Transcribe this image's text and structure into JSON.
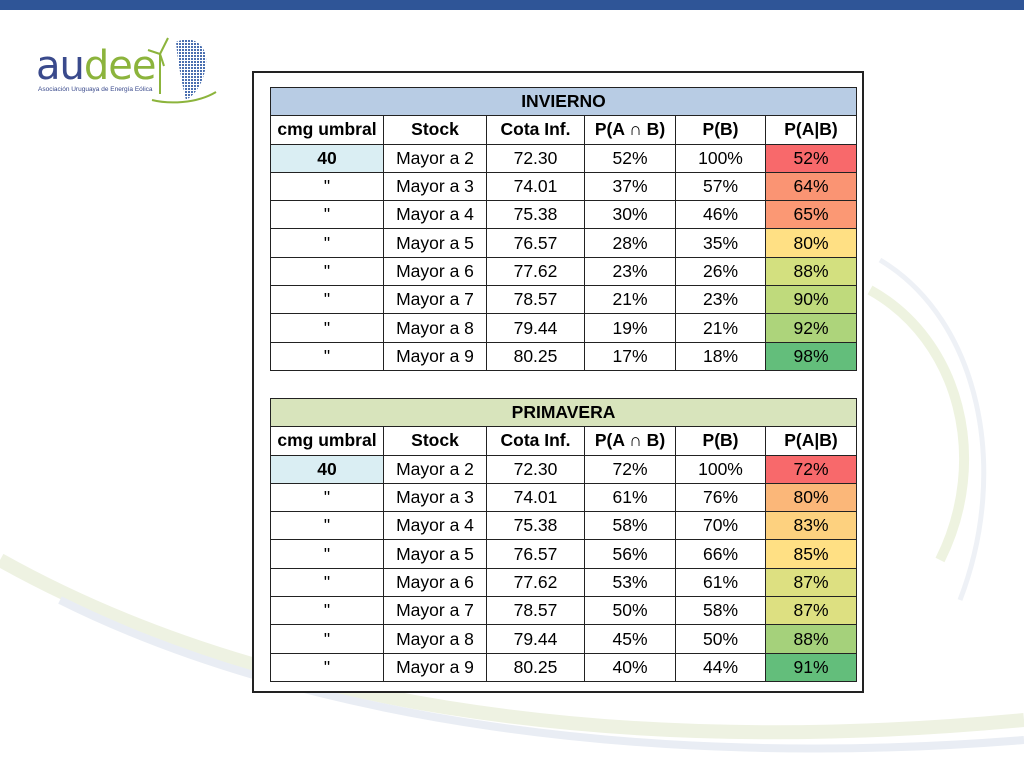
{
  "brand": {
    "name_part1": "au",
    "name_part2": "dee",
    "tagline": "Asociación Uruguaya de Energía Eólica",
    "bar_color": "#2f5597"
  },
  "columns": [
    "cmg umbral",
    "Stock",
    "Cota Inf.",
    "P(A ∩ B)",
    "P(B)",
    "P(A|B)"
  ],
  "tables": [
    {
      "title": "INVIERNO",
      "title_bg": "#b8cce4",
      "rows": [
        {
          "umbral": "40",
          "stock": "Mayor a 2",
          "cota": "72.30",
          "pab": "52%",
          "pb": "100%",
          "pagb": "52%",
          "color": "#f8696b"
        },
        {
          "umbral": "\"",
          "stock": "Mayor a 3",
          "cota": "74.01",
          "pab": "37%",
          "pb": "57%",
          "pagb": "64%",
          "color": "#fa9473"
        },
        {
          "umbral": "\"",
          "stock": "Mayor a 4",
          "cota": "75.38",
          "pab": "30%",
          "pb": "46%",
          "pagb": "65%",
          "color": "#fb9874"
        },
        {
          "umbral": "\"",
          "stock": "Mayor a 5",
          "cota": "76.57",
          "pab": "28%",
          "pb": "35%",
          "pagb": "80%",
          "color": "#ffe084"
        },
        {
          "umbral": "\"",
          "stock": "Mayor a 6",
          "cota": "77.62",
          "pab": "23%",
          "pb": "26%",
          "pagb": "88%",
          "color": "#d3e07f"
        },
        {
          "umbral": "\"",
          "stock": "Mayor a 7",
          "cota": "78.57",
          "pab": "21%",
          "pb": "23%",
          "pagb": "90%",
          "color": "#bfda7c"
        },
        {
          "umbral": "\"",
          "stock": "Mayor a 8",
          "cota": "79.44",
          "pab": "19%",
          "pb": "21%",
          "pagb": "92%",
          "color": "#add47b"
        },
        {
          "umbral": "\"",
          "stock": "Mayor a 9",
          "cota": "80.25",
          "pab": "17%",
          "pb": "18%",
          "pagb": "98%",
          "color": "#63be7b"
        }
      ]
    },
    {
      "title": "PRIMAVERA",
      "title_bg": "#d8e4bc",
      "rows": [
        {
          "umbral": "40",
          "stock": "Mayor a 2",
          "cota": "72.30",
          "pab": "72%",
          "pb": "100%",
          "pagb": "72%",
          "color": "#f8696b"
        },
        {
          "umbral": "\"",
          "stock": "Mayor a 3",
          "cota": "74.01",
          "pab": "61%",
          "pb": "76%",
          "pagb": "80%",
          "color": "#fbb779"
        },
        {
          "umbral": "\"",
          "stock": "Mayor a 4",
          "cota": "75.38",
          "pab": "58%",
          "pb": "70%",
          "pagb": "83%",
          "color": "#fdd17f"
        },
        {
          "umbral": "\"",
          "stock": "Mayor a 5",
          "cota": "76.57",
          "pab": "56%",
          "pb": "66%",
          "pagb": "85%",
          "color": "#ffe084"
        },
        {
          "umbral": "\"",
          "stock": "Mayor a 6",
          "cota": "77.62",
          "pab": "53%",
          "pb": "61%",
          "pagb": "87%",
          "color": "#dde081"
        },
        {
          "umbral": "\"",
          "stock": "Mayor a 7",
          "cota": "78.57",
          "pab": "50%",
          "pb": "58%",
          "pagb": "87%",
          "color": "#dde081"
        },
        {
          "umbral": "\"",
          "stock": "Mayor a 8",
          "cota": "79.44",
          "pab": "45%",
          "pb": "50%",
          "pagb": "88%",
          "color": "#a5d17b"
        },
        {
          "umbral": "\"",
          "stock": "Mayor a 9",
          "cota": "80.25",
          "pab": "40%",
          "pb": "44%",
          "pagb": "91%",
          "color": "#63be7b"
        }
      ]
    }
  ],
  "umbral_cell_bg": "#daeef3"
}
